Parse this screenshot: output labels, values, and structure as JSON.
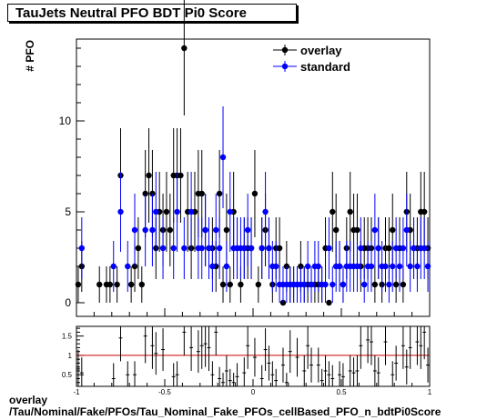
{
  "title": "TauJets Neutral PFO BDT Pi0 Score",
  "footer": {
    "line1": "overlay",
    "line2": "/Tau/Nominal/Fake/PFOs/Tau_Nominal_Fake_PFOs_cellBased_PFO_n_bdtPi0Score"
  },
  "colors": {
    "overlay": "#000000",
    "standard": "#0000ff",
    "ratio_line": "#cc0000"
  },
  "chart_data": [
    {
      "type": "scatter",
      "ylabel": "# PFO",
      "xlim": [
        -1,
        1
      ],
      "ylim": [
        -0.75,
        14.5
      ],
      "yticks": [
        0,
        5,
        10
      ],
      "legend": {
        "placement": "top-right",
        "entries": [
          "overlay",
          "standard"
        ]
      },
      "series": [
        {
          "name": "overlay",
          "x": [
            -0.99,
            -0.97,
            -0.87,
            -0.83,
            -0.81,
            -0.77,
            -0.75,
            -0.69,
            -0.67,
            -0.65,
            -0.63,
            -0.61,
            -0.59,
            -0.57,
            -0.55,
            -0.53,
            -0.51,
            -0.49,
            -0.47,
            -0.45,
            -0.43,
            -0.41,
            -0.39,
            -0.37,
            -0.35,
            -0.33,
            -0.31,
            -0.29,
            -0.27,
            -0.25,
            -0.23,
            -0.21,
            -0.19,
            -0.17,
            -0.15,
            -0.13,
            -0.11,
            -0.09,
            -0.07,
            -0.05,
            -0.03,
            -0.01,
            0.01,
            0.03,
            0.05,
            0.07,
            0.09,
            0.11,
            0.13,
            0.15,
            0.17,
            0.19,
            0.21,
            0.23,
            0.25,
            0.27,
            0.29,
            0.31,
            0.33,
            0.35,
            0.37,
            0.39,
            0.41,
            0.43,
            0.45,
            0.47,
            0.49,
            0.51,
            0.53,
            0.55,
            0.57,
            0.59,
            0.61,
            0.63,
            0.65,
            0.67,
            0.69,
            0.71,
            0.73,
            0.75,
            0.77,
            0.79,
            0.81,
            0.83,
            0.85,
            0.87,
            0.89,
            0.91,
            0.93,
            0.95,
            0.97,
            0.99
          ],
          "y": [
            1,
            2,
            1,
            1,
            1,
            1,
            7,
            1,
            2,
            3,
            1,
            6,
            7,
            6,
            3,
            5,
            4,
            5,
            4,
            7,
            7,
            7,
            14,
            5,
            3,
            5,
            6,
            6,
            4,
            3,
            3,
            2,
            6,
            1,
            4,
            1,
            5,
            3,
            1,
            3,
            3,
            3,
            6,
            1,
            3,
            4,
            3,
            1,
            3,
            3,
            0,
            2,
            1,
            1,
            1,
            2,
            1,
            1,
            1,
            1,
            1,
            1,
            3,
            0,
            5,
            4,
            2,
            1,
            3,
            5,
            4,
            4,
            2,
            3,
            3,
            3,
            1,
            3,
            1,
            3,
            3,
            4,
            1,
            3,
            1,
            5,
            4,
            3,
            3,
            5,
            5,
            3
          ],
          "yerr": [
            1,
            1.4,
            1,
            1,
            1,
            1,
            2.6,
            1,
            1.4,
            1.7,
            1,
            2.4,
            2.6,
            2.4,
            1.7,
            2.2,
            2,
            2.2,
            2,
            2.6,
            2.6,
            2.6,
            3.7,
            2.2,
            1.7,
            2.2,
            2.4,
            2.4,
            2,
            1.7,
            1.7,
            1.4,
            2.4,
            1,
            2,
            1,
            2.2,
            1.7,
            1,
            1.7,
            1.7,
            1.7,
            2.4,
            1,
            1.7,
            2,
            1.7,
            1,
            1.7,
            1.7,
            0,
            1.4,
            1,
            1,
            1,
            1.4,
            1,
            1,
            1,
            1,
            1,
            1,
            1.7,
            0,
            2.2,
            2,
            1.4,
            1,
            1.7,
            2.2,
            2,
            2,
            1.4,
            1.7,
            1.7,
            1.7,
            1,
            1.7,
            1,
            1.7,
            1.7,
            2,
            1,
            1.7,
            1,
            2.2,
            2,
            1.7,
            1.7,
            2.2,
            2.2,
            1.7
          ]
        },
        {
          "name": "standard",
          "x": [
            -0.97,
            -0.79,
            -0.75,
            -0.71,
            -0.67,
            -0.61,
            -0.57,
            -0.55,
            -0.51,
            -0.45,
            -0.43,
            -0.39,
            -0.35,
            -0.31,
            -0.29,
            -0.27,
            -0.25,
            -0.23,
            -0.21,
            -0.19,
            -0.17,
            -0.15,
            -0.13,
            -0.11,
            -0.09,
            -0.07,
            -0.05,
            -0.03,
            -0.01,
            0.05,
            0.07,
            0.09,
            0.11,
            0.13,
            0.15,
            0.17,
            0.19,
            0.21,
            0.23,
            0.25,
            0.27,
            0.29,
            0.31,
            0.33,
            0.35,
            0.37,
            0.39,
            0.41,
            0.43,
            0.45,
            0.47,
            0.49,
            0.51,
            0.53,
            0.55,
            0.57,
            0.59,
            0.61,
            0.63,
            0.65,
            0.67,
            0.69,
            0.71,
            0.73,
            0.75,
            0.77,
            0.79,
            0.81,
            0.83,
            0.85,
            0.87,
            0.89,
            0.91,
            0.93,
            0.95,
            0.97,
            0.99
          ],
          "y": [
            3,
            2,
            5,
            2,
            4,
            4,
            4,
            5,
            3,
            3,
            5,
            3,
            5,
            3,
            3,
            4,
            3,
            2,
            4,
            3,
            8,
            2,
            5,
            3,
            3,
            3,
            3,
            4,
            3,
            3,
            5,
            3,
            2,
            2,
            1,
            1,
            1,
            1,
            1,
            1,
            1,
            1,
            2,
            1,
            2,
            2,
            1,
            1,
            3,
            1,
            2,
            2,
            1,
            2,
            2,
            2,
            2,
            3,
            1,
            2,
            2,
            4,
            3,
            2,
            2,
            1,
            2,
            3,
            2,
            3,
            4,
            2,
            3,
            2,
            3,
            3,
            2
          ],
          "yerr": [
            1.7,
            1.4,
            2.2,
            1.4,
            2,
            2,
            2,
            2.2,
            1.7,
            1.7,
            2.2,
            1.7,
            2.2,
            1.7,
            1.7,
            2,
            1.7,
            1.4,
            2,
            1.7,
            2.8,
            1.4,
            2.2,
            1.7,
            1.7,
            1.7,
            1.7,
            2,
            1.7,
            1.7,
            2.2,
            1.7,
            1.4,
            1.4,
            1,
            1,
            1,
            1,
            1,
            1,
            1,
            1,
            1.4,
            1,
            1.4,
            1.4,
            1,
            1,
            1.7,
            1,
            1.4,
            1.4,
            1,
            1.4,
            1.4,
            1.4,
            1.4,
            1.7,
            1,
            1.4,
            1.4,
            2,
            1.7,
            1.4,
            1.4,
            1,
            1.4,
            1.7,
            1.4,
            1.7,
            2,
            1.4,
            1.7,
            1.4,
            1.7,
            1.7,
            1.4
          ]
        }
      ]
    },
    {
      "type": "scatter",
      "xlim": [
        -1,
        1
      ],
      "ylim": [
        0.2,
        1.75
      ],
      "yticks": [
        0.5,
        1,
        1.5
      ],
      "yticklabels": [
        "0.5",
        "1",
        "1.5"
      ],
      "xticks": [
        -1,
        -0.5,
        0,
        0.5,
        1
      ],
      "xticklabels": [
        "-1",
        "-0.5",
        "0",
        "0.5",
        "1"
      ],
      "reference_line": 1,
      "series": [
        {
          "name": "ratio",
          "x": [
            -0.99,
            -0.97,
            -0.79,
            -0.75,
            -0.71,
            -0.67,
            -0.61,
            -0.57,
            -0.55,
            -0.51,
            -0.45,
            -0.43,
            -0.39,
            -0.35,
            -0.31,
            -0.29,
            -0.27,
            -0.25,
            -0.23,
            -0.21,
            -0.19,
            -0.17,
            -0.15,
            -0.13,
            -0.11,
            -0.09,
            -0.05,
            -0.03,
            0.01,
            0.05,
            0.07,
            0.09,
            0.11,
            0.13,
            0.17,
            0.19,
            0.21,
            0.25,
            0.29,
            0.31,
            0.33,
            0.37,
            0.39,
            0.41,
            0.43,
            0.45,
            0.49,
            0.51,
            0.55,
            0.57,
            0.59,
            0.61,
            0.65,
            0.67,
            0.69,
            0.71,
            0.75,
            0.79,
            0.81,
            0.85,
            0.87,
            0.89,
            0.93,
            0.95,
            0.97,
            0.99
          ],
          "y": [
            0.65,
            0.55,
            0.4,
            1.45,
            0.5,
            0.5,
            1.5,
            1.25,
            1.05,
            1.15,
            0.45,
            0.5,
            1.6,
            1.2,
            1.1,
            1.25,
            1.3,
            1.2,
            0.5,
            1.6,
            0.4,
            0.3,
            0.6,
            0.35,
            0.3,
            0.45,
            0.55,
            1.25,
            0.95,
            0.4,
            1.15,
            0.8,
            0.5,
            0.35,
            0.75,
            0.3,
            1.1,
            0.95,
            0.6,
            1.25,
            0.75,
            0.75,
            0.35,
            0.6,
            0.5,
            0.4,
            0.5,
            0.45,
            0.6,
            0.55,
            0.6,
            1.25,
            1.4,
            1.35,
            0.6,
            0.55,
            1.35,
            0.5,
            0.8,
            1.25,
            0.7,
            1.2,
            1.35,
            1.25,
            1.6,
            0.75
          ],
          "yerr": [
            0.5,
            0.4,
            0.4,
            0.6,
            0.35,
            0.35,
            0.7,
            0.6,
            0.55,
            0.55,
            0.35,
            0.35,
            0.6,
            0.6,
            0.55,
            0.6,
            0.6,
            0.6,
            0.35,
            0.6,
            0.3,
            0.25,
            0.4,
            0.3,
            0.25,
            0.35,
            0.4,
            0.6,
            0.5,
            0.35,
            0.55,
            0.45,
            0.35,
            0.3,
            0.45,
            0.25,
            0.55,
            0.5,
            0.4,
            0.6,
            0.45,
            0.45,
            0.3,
            0.4,
            0.35,
            0.35,
            0.35,
            0.35,
            0.4,
            0.4,
            0.4,
            0.6,
            0.6,
            0.6,
            0.4,
            0.4,
            0.6,
            0.35,
            0.45,
            0.6,
            0.45,
            0.55,
            0.6,
            0.6,
            0.7,
            0.45
          ]
        }
      ]
    }
  ]
}
